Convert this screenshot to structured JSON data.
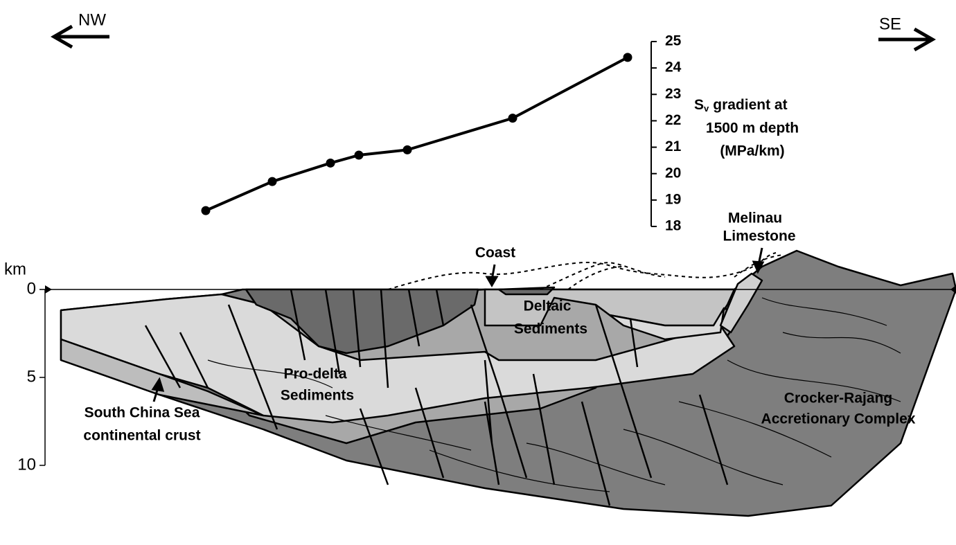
{
  "directions": {
    "west": "NW",
    "east": "SE"
  },
  "chart_data": {
    "type": "line",
    "y_label": {
      "symbol": "S",
      "subscript": "v",
      "lines": [
        "gradient at",
        "1500 m depth",
        "(MPa/km)"
      ]
    },
    "categories": [
      null,
      null,
      null,
      null,
      null,
      null,
      null
    ],
    "values": [
      18.6,
      19.7,
      20.4,
      20.7,
      20.9,
      22.1,
      24.4
    ],
    "color": "#000000",
    "ylim": [
      18,
      25
    ],
    "yticks": [
      18,
      19,
      20,
      21,
      22,
      23,
      24,
      25
    ]
  },
  "depth_axis": {
    "label": "km",
    "lim": [
      0,
      10
    ],
    "ticks": [
      0,
      5,
      10
    ]
  },
  "labels": {
    "coast": "Coast",
    "melinau": [
      "Melinau",
      "Limestone"
    ],
    "deltaic": [
      "Deltaic",
      "Sediments"
    ],
    "prodelta": [
      "Pro-delta",
      "Sediments"
    ],
    "crust": [
      "South China Sea",
      "continental crust"
    ],
    "crocker": [
      "Crocker-Rajang",
      "Accretionary Complex"
    ]
  }
}
